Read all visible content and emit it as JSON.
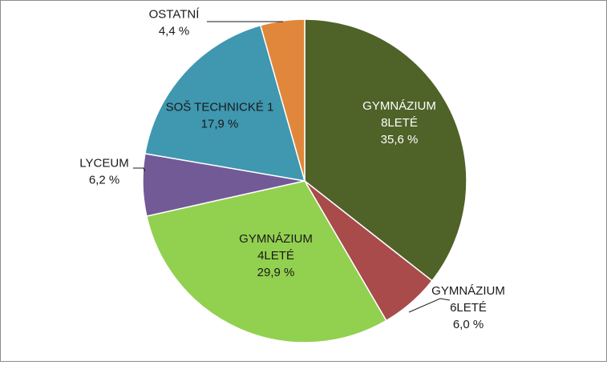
{
  "chart_data": {
    "type": "pie",
    "title": "",
    "slices": [
      {
        "label_lines": [
          "GYMNÁZIUM",
          "8LETÉ"
        ],
        "value_label": "35,6 %",
        "value": 35.6,
        "color": "#4f6228"
      },
      {
        "label_lines": [
          "GYMNÁZIUM",
          "6LETÉ"
        ],
        "value_label": "6,0 %",
        "value": 6.0,
        "color": "#a84b4a"
      },
      {
        "label_lines": [
          "GYMNÁZIUM",
          "4LETÉ"
        ],
        "value_label": "29,9 %",
        "value": 29.9,
        "color": "#92d050"
      },
      {
        "label_lines": [
          "LYCEUM"
        ],
        "value_label": "6,2 %",
        "value": 6.2,
        "color": "#725a97"
      },
      {
        "label_lines": [
          "SOŠ TECHNICKÉ 1"
        ],
        "value_label": "17,9 %",
        "value": 17.9,
        "color": "#3f97b0"
      },
      {
        "label_lines": [
          "OSTATNÍ"
        ],
        "value_label": "4,4 %",
        "value": 4.4,
        "color": "#e0873c"
      }
    ],
    "start_angle": "12 o'clock",
    "direction": "clockwise",
    "legend": "none",
    "data_labels": true
  }
}
